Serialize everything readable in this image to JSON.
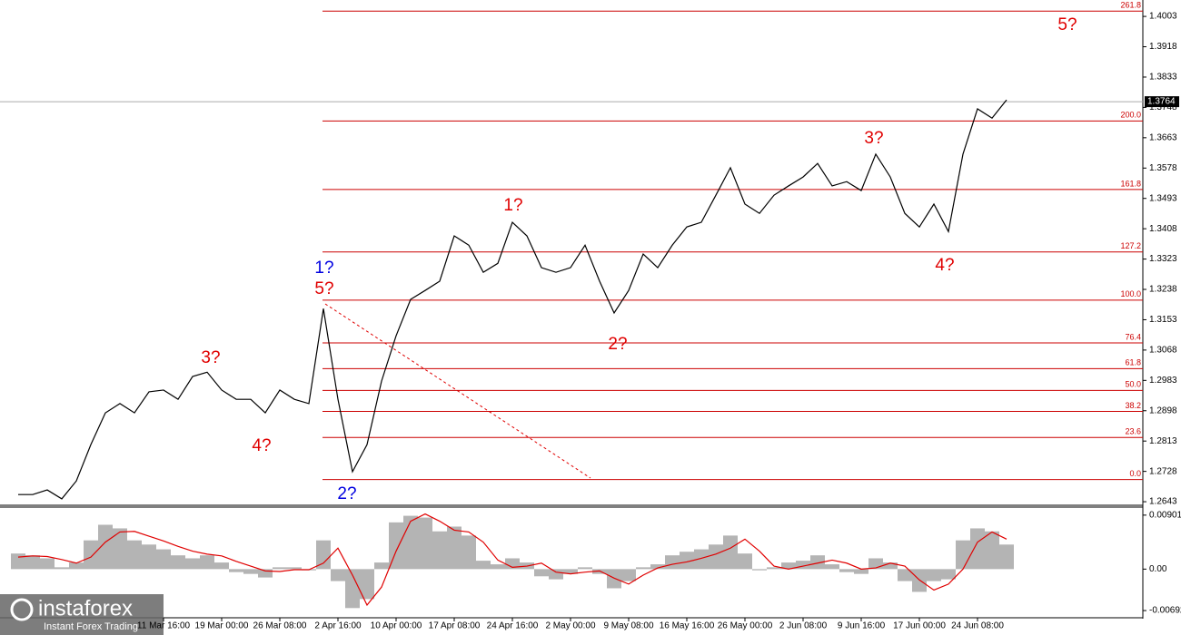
{
  "chart_data": [
    {
      "type": "line",
      "color": "#000000",
      "categories": [
        null,
        null,
        null,
        null,
        null,
        null,
        null,
        null,
        null,
        null,
        "11 Mar 16:00",
        null,
        null,
        null,
        "19 Mar 00:00",
        null,
        null,
        null,
        "26 Mar 08:00",
        null,
        null,
        null,
        "2 Apr 16:00",
        null,
        null,
        null,
        "10 Apr 00:00",
        null,
        null,
        null,
        "17 Apr 08:00",
        null,
        null,
        null,
        "24 Apr 16:00",
        null,
        null,
        null,
        "2 May 00:00",
        null,
        null,
        null,
        "9 May 08:00",
        null,
        null,
        null,
        "16 May 16:00",
        null,
        null,
        null,
        "26 May 00:00",
        null,
        null,
        null,
        "2 Jun 08:00",
        null,
        null,
        null,
        "9 Jun 16:00",
        null,
        null,
        null,
        "17 Jun 00:00",
        null,
        null,
        null,
        "24 Jun 08:00",
        null,
        null
      ],
      "values": [
        1.2663,
        1.2663,
        1.2676,
        1.2651,
        1.2701,
        1.2803,
        1.2892,
        1.2918,
        1.2892,
        1.2951,
        1.2956,
        1.293,
        1.2994,
        1.3006,
        1.2956,
        1.293,
        1.293,
        1.2892,
        1.2956,
        1.293,
        1.2918,
        1.3184,
        1.293,
        1.2727,
        1.2803,
        1.2981,
        1.3108,
        1.321,
        1.3235,
        1.3261,
        1.3388,
        1.3362,
        1.3286,
        1.3311,
        1.3426,
        1.3388,
        1.3299,
        1.3286,
        1.3299,
        1.3362,
        1.3261,
        1.3172,
        1.3235,
        1.3337,
        1.3299,
        1.3362,
        1.3413,
        1.3426,
        1.3502,
        1.3579,
        1.3477,
        1.3451,
        1.3502,
        1.3528,
        1.3553,
        1.3591,
        1.3528,
        1.354,
        1.3515,
        1.3617,
        1.3553,
        1.3451,
        1.3413,
        1.3477,
        1.34,
        1.3617,
        1.3744,
        1.3718,
        1.3769
      ],
      "ylim": [
        1.2633,
        1.4049
      ],
      "yticks": [
        1.2643,
        1.2728,
        1.2813,
        1.2898,
        1.2983,
        1.3068,
        1.3153,
        1.3238,
        1.3323,
        1.3408,
        1.3493,
        1.3578,
        1.3663,
        1.3748,
        1.3833,
        1.3918,
        1.4003
      ],
      "current_price": 1.3764,
      "fib_color": "#cc0000",
      "fib_levels": [
        {
          "label": "261.8",
          "price": 1.4018
        },
        {
          "label": "200.0",
          "price": 1.371
        },
        {
          "label": "161.8",
          "price": 1.3518
        },
        {
          "label": "127.2",
          "price": 1.3343
        },
        {
          "label": "100.0",
          "price": 1.3208
        },
        {
          "label": "76.4",
          "price": 1.3088
        },
        {
          "label": "61.8",
          "price": 1.3016
        },
        {
          "label": "50.0",
          "price": 1.2955
        },
        {
          "label": "38.2",
          "price": 1.2896
        },
        {
          "label": "23.6",
          "price": 1.2823
        },
        {
          "label": "0.0",
          "price": 1.2705
        }
      ],
      "annotations": [
        {
          "text": "5?",
          "color": "#e00000"
        },
        {
          "text": "3?",
          "color": "#e00000"
        },
        {
          "text": "1?",
          "color": "#e00000"
        },
        {
          "text": "2?",
          "color": "#e00000"
        },
        {
          "text": "4?",
          "color": "#e00000"
        },
        {
          "text": "1?",
          "color": "#0000e0"
        },
        {
          "text": "5?",
          "color": "#e00000"
        },
        {
          "text": "2?",
          "color": "#0000e0"
        },
        {
          "text": "3?",
          "color": "#e00000"
        },
        {
          "text": "4?",
          "color": "#e00000"
        }
      ]
    },
    {
      "type": "macd",
      "color": "#b4b4b4",
      "signal_color": "#e00000",
      "values": [
        0.0026,
        0.0023,
        0.0018,
        0.0003,
        0.0011,
        0.0048,
        0.0074,
        0.0068,
        0.0048,
        0.0041,
        0.0033,
        0.0023,
        0.0018,
        0.0023,
        0.0011,
        -0.0005,
        -0.0008,
        -0.0014,
        0.0003,
        0.0003,
        -0.0002,
        0.0048,
        -0.002,
        -0.0065,
        -0.005,
        0.0011,
        0.0078,
        0.0089,
        0.0086,
        0.0063,
        0.0071,
        0.0056,
        0.0014,
        0.0008,
        0.0018,
        0.0011,
        -0.0012,
        -0.0017,
        -0.0008,
        0.0003,
        -0.0008,
        -0.0032,
        -0.002,
        0.0003,
        0.0008,
        0.0023,
        0.0029,
        0.0033,
        0.0041,
        0.0056,
        0.0026,
        -0.0002,
        0.0003,
        0.0011,
        0.0014,
        0.0023,
        0.0008,
        -0.0005,
        -0.0008,
        0.0018,
        0.0011,
        -0.002,
        -0.0038,
        -0.002,
        -0.0017,
        0.0048,
        0.0068,
        0.0063,
        0.0041
      ],
      "signal": [
        0.002,
        0.0022,
        0.0021,
        0.0016,
        0.001,
        0.002,
        0.0045,
        0.0062,
        0.0063,
        0.0055,
        0.0047,
        0.0038,
        0.003,
        0.0025,
        0.0022,
        0.0013,
        0.0005,
        -0.0003,
        -0.0004,
        -0.0001,
        -0.0001,
        0.001,
        0.0035,
        -0.001,
        -0.006,
        -0.003,
        0.003,
        0.008,
        0.0092,
        0.008,
        0.0065,
        0.0062,
        0.0045,
        0.0015,
        0.0003,
        0.0005,
        0.001,
        -0.0005,
        -0.0008,
        -0.0005,
        -0.0003,
        -0.0015,
        -0.0025,
        -0.001,
        0.0002,
        0.0008,
        0.0012,
        0.0018,
        0.0025,
        0.0035,
        0.005,
        0.003,
        0.0005,
        0,
        0.0005,
        0.001,
        0.0015,
        0.001,
        0,
        0.0002,
        0.001,
        0.0005,
        -0.0018,
        -0.0035,
        -0.0025,
        0,
        0.0045,
        0.0062,
        0.005
      ],
      "ylim": [
        -0.00797,
        0.0102
      ],
      "yticks": [
        -0.00692,
        {
          "value": 0,
          "label": "0.00"
        },
        0.00901
      ]
    }
  ],
  "logo": {
    "name": "instaforex",
    "tagline": "Instant Forex Trading"
  }
}
